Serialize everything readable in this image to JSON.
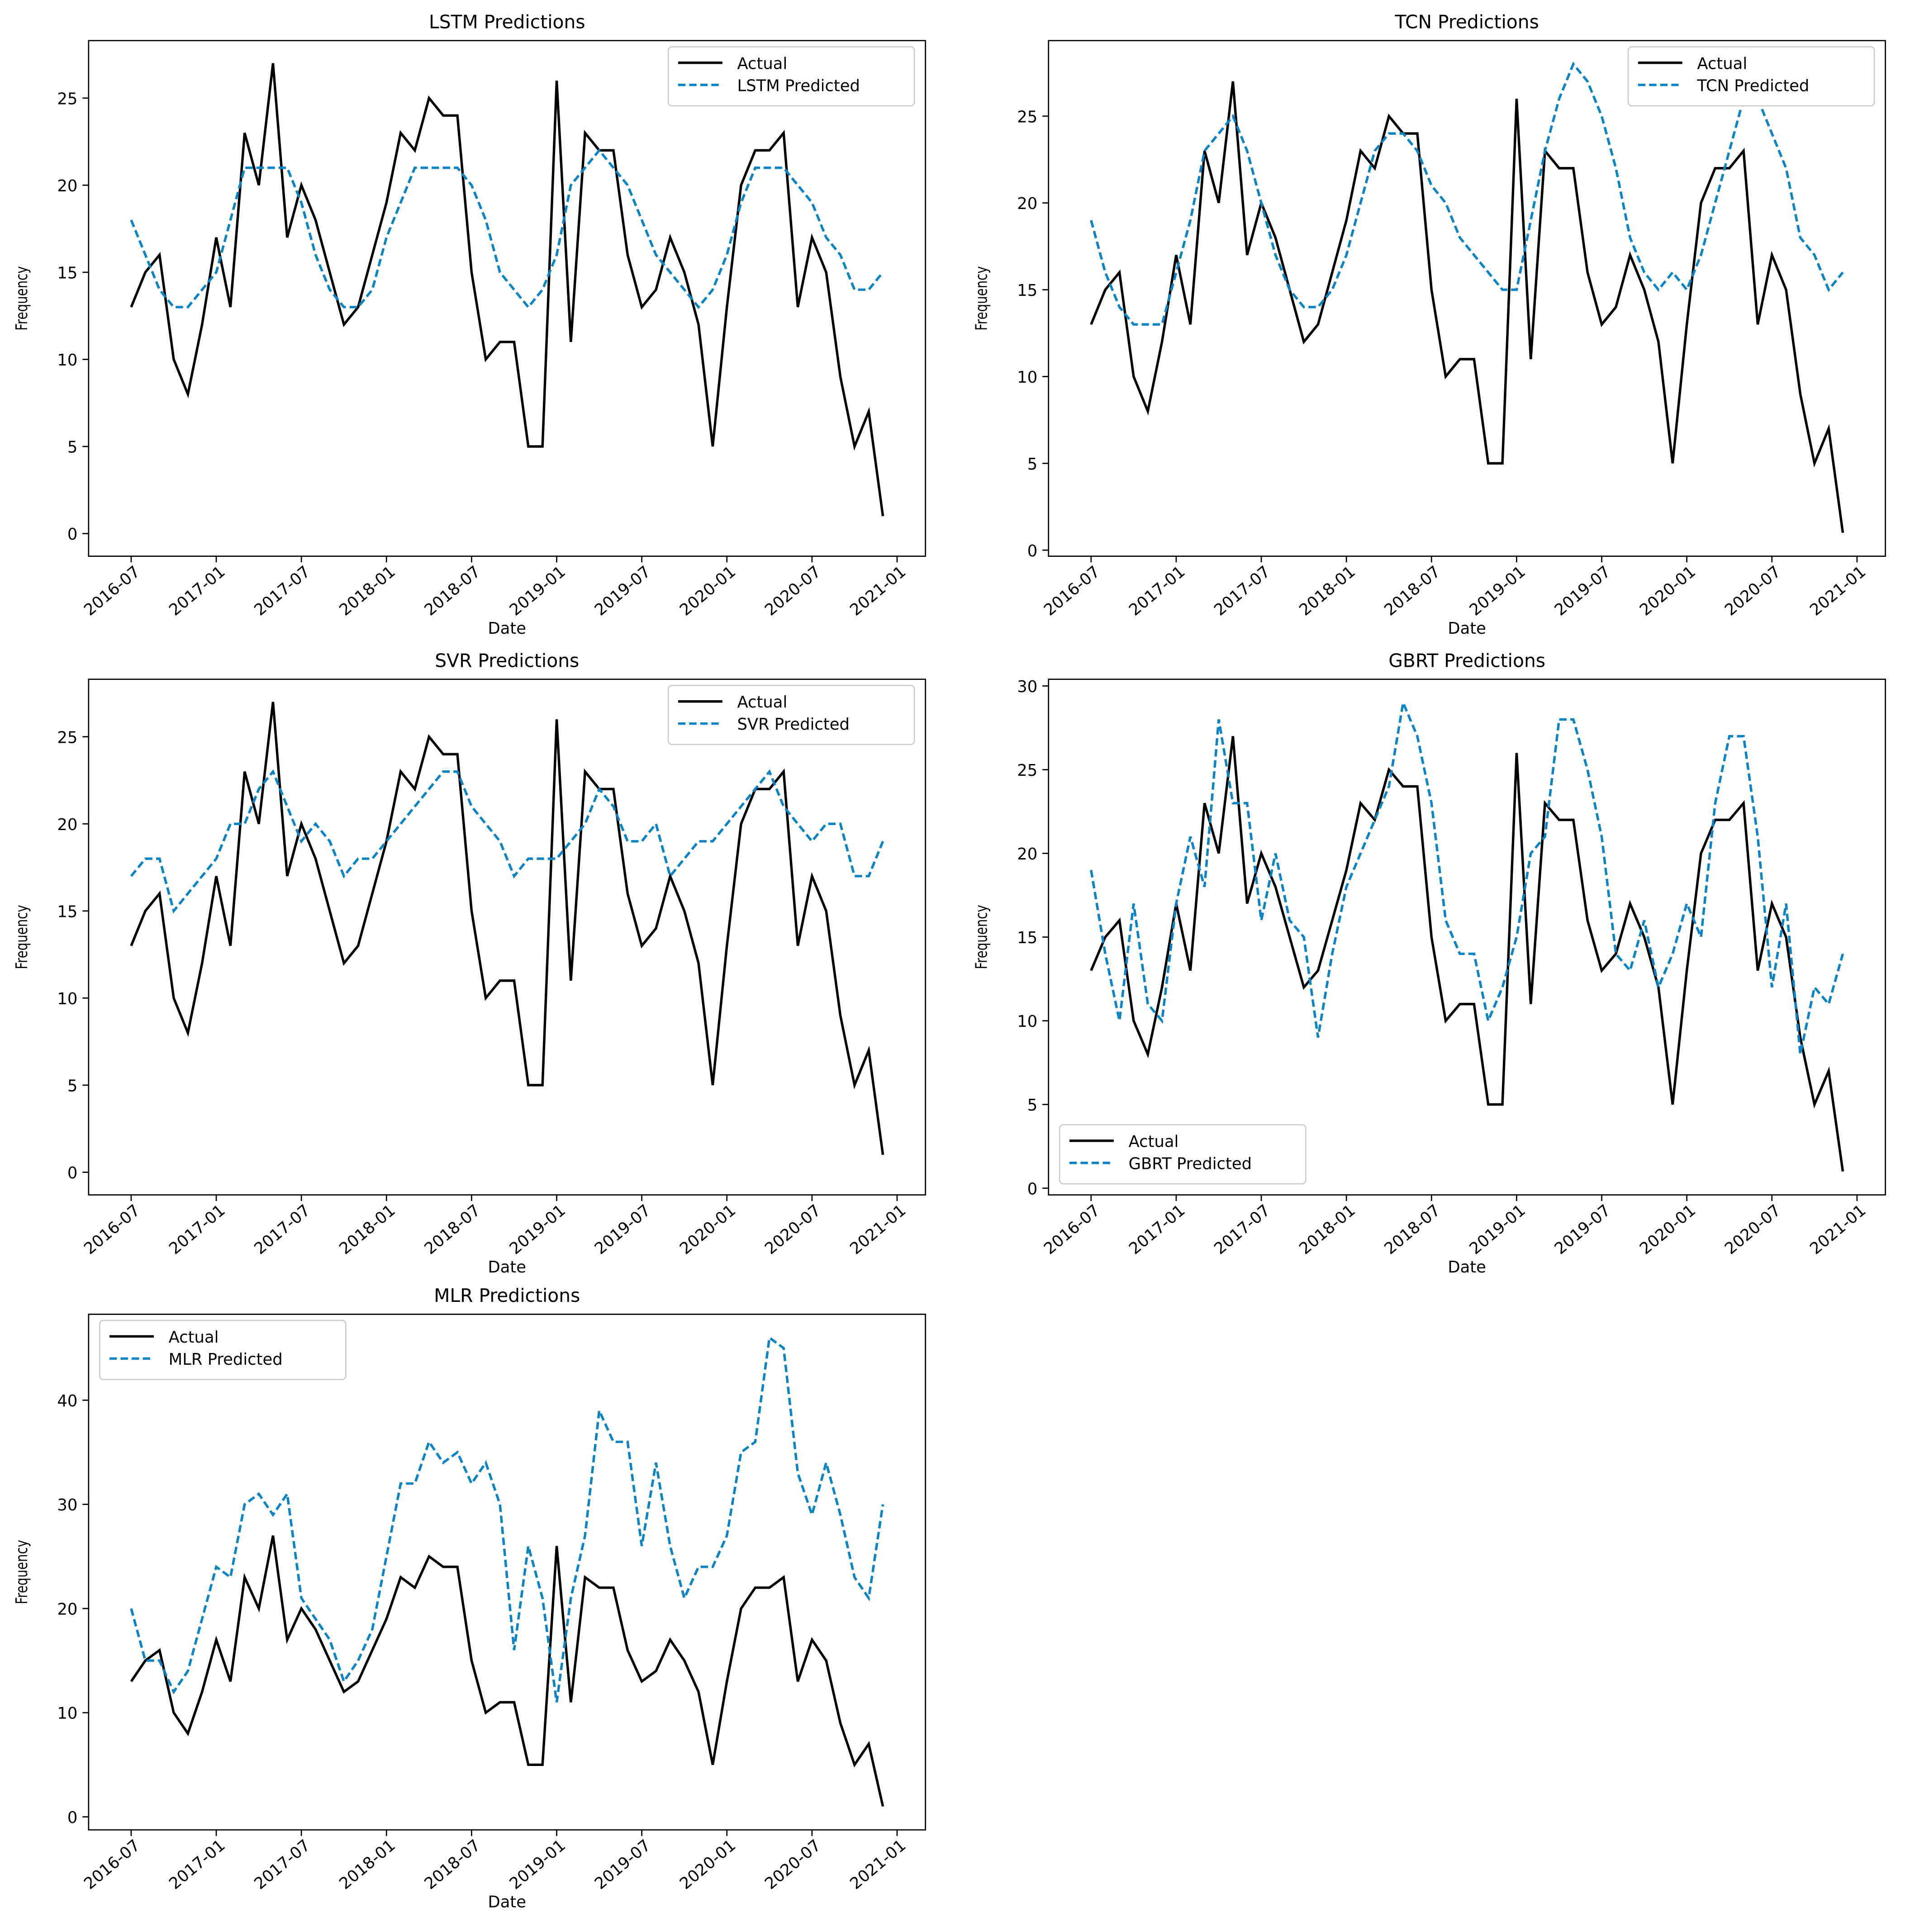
{
  "chart_data": [
    {
      "type": "line",
      "title": "LSTM Predictions",
      "x_label": "Date",
      "y_label": "Frequency",
      "legend": "upper right",
      "x": [
        "2016-07",
        "2016-08",
        "2016-09",
        "2016-10",
        "2016-11",
        "2016-12",
        "2017-01",
        "2017-02",
        "2017-03",
        "2017-04",
        "2017-05",
        "2017-06",
        "2017-07",
        "2017-08",
        "2017-09",
        "2017-10",
        "2017-11",
        "2017-12",
        "2018-01",
        "2018-02",
        "2018-03",
        "2018-04",
        "2018-05",
        "2018-06",
        "2018-07",
        "2018-08",
        "2018-09",
        "2018-10",
        "2018-11",
        "2018-12",
        "2019-01",
        "2019-02",
        "2019-03",
        "2019-04",
        "2019-05",
        "2019-06",
        "2019-07",
        "2019-08",
        "2019-09",
        "2019-10",
        "2019-11",
        "2019-12",
        "2020-01",
        "2020-02",
        "2020-03",
        "2020-04",
        "2020-05",
        "2020-06",
        "2020-07",
        "2020-08",
        "2020-09",
        "2020-10",
        "2020-11",
        "2020-12"
      ],
      "xlim": [
        "2016-04",
        "2021-03"
      ],
      "xticks": [
        "2016-07",
        "2017-01",
        "2017-07",
        "2018-01",
        "2018-07",
        "2019-01",
        "2019-07",
        "2020-01",
        "2020-07",
        "2021-01"
      ],
      "ylim": [
        -1.3,
        28.3
      ],
      "yticks": [
        0,
        5,
        10,
        15,
        20,
        25
      ],
      "series": [
        {
          "name": "Actual",
          "color": "#000000",
          "linestyle": "solid",
          "values": [
            13,
            15,
            16,
            10,
            8,
            12,
            17,
            13,
            23,
            20,
            27,
            17,
            20,
            18,
            15,
            12,
            13,
            16,
            19,
            23,
            22,
            25,
            24,
            24,
            15,
            10,
            11,
            11,
            5,
            5,
            26,
            11,
            23,
            22,
            22,
            16,
            13,
            14,
            17,
            15,
            12,
            5,
            13,
            20,
            22,
            22,
            23,
            13,
            17,
            15,
            9,
            5,
            7,
            1
          ]
        },
        {
          "name": "LSTM Predicted",
          "color": "#0b84c6",
          "linestyle": "dashed",
          "values": [
            18,
            16,
            14,
            13,
            13,
            14,
            15,
            18,
            21,
            21,
            21,
            21,
            19,
            16,
            14,
            13,
            13,
            14,
            17,
            19,
            21,
            21,
            21,
            21,
            20,
            18,
            15,
            14,
            13,
            14,
            16,
            20,
            21,
            22,
            21,
            20,
            18,
            16,
            15,
            14,
            13,
            14,
            16,
            19,
            21,
            21,
            21,
            20,
            19,
            17,
            16,
            14,
            14,
            15
          ]
        }
      ]
    },
    {
      "type": "line",
      "title": "TCN Predictions",
      "x_label": "Date",
      "y_label": "Frequency",
      "legend": "upper right",
      "x": [
        "2016-07",
        "2016-08",
        "2016-09",
        "2016-10",
        "2016-11",
        "2016-12",
        "2017-01",
        "2017-02",
        "2017-03",
        "2017-04",
        "2017-05",
        "2017-06",
        "2017-07",
        "2017-08",
        "2017-09",
        "2017-10",
        "2017-11",
        "2017-12",
        "2018-01",
        "2018-02",
        "2018-03",
        "2018-04",
        "2018-05",
        "2018-06",
        "2018-07",
        "2018-08",
        "2018-09",
        "2018-10",
        "2018-11",
        "2018-12",
        "2019-01",
        "2019-02",
        "2019-03",
        "2019-04",
        "2019-05",
        "2019-06",
        "2019-07",
        "2019-08",
        "2019-09",
        "2019-10",
        "2019-11",
        "2019-12",
        "2020-01",
        "2020-02",
        "2020-03",
        "2020-04",
        "2020-05",
        "2020-06",
        "2020-07",
        "2020-08",
        "2020-09",
        "2020-10",
        "2020-11",
        "2020-12"
      ],
      "xlim": [
        "2016-04",
        "2021-03"
      ],
      "xticks": [
        "2016-07",
        "2017-01",
        "2017-07",
        "2018-01",
        "2018-07",
        "2019-01",
        "2019-07",
        "2020-01",
        "2020-07",
        "2021-01"
      ],
      "ylim": [
        -0.35,
        29.35
      ],
      "yticks": [
        0,
        5,
        10,
        15,
        20,
        25
      ],
      "series": [
        {
          "name": "Actual",
          "color": "#000000",
          "linestyle": "solid",
          "values": [
            13,
            15,
            16,
            10,
            8,
            12,
            17,
            13,
            23,
            20,
            27,
            17,
            20,
            18,
            15,
            12,
            13,
            16,
            19,
            23,
            22,
            25,
            24,
            24,
            15,
            10,
            11,
            11,
            5,
            5,
            26,
            11,
            23,
            22,
            22,
            16,
            13,
            14,
            17,
            15,
            12,
            5,
            13,
            20,
            22,
            22,
            23,
            13,
            17,
            15,
            9,
            5,
            7,
            1
          ]
        },
        {
          "name": "TCN Predicted",
          "color": "#0b84c6",
          "linestyle": "dashed",
          "values": [
            19,
            16,
            14,
            13,
            13,
            13,
            16,
            19,
            23,
            24,
            25,
            23,
            20,
            17,
            15,
            14,
            14,
            15,
            17,
            20,
            23,
            24,
            24,
            23,
            21,
            20,
            18,
            17,
            16,
            15,
            15,
            19,
            23,
            26,
            28,
            27,
            25,
            22,
            18,
            16,
            15,
            16,
            15,
            17,
            20,
            23,
            26,
            26,
            24,
            22,
            18,
            17,
            15,
            16
          ]
        }
      ]
    },
    {
      "type": "line",
      "title": "SVR Predictions",
      "x_label": "Date",
      "y_label": "Frequency",
      "legend": "upper right",
      "x": [
        "2016-07",
        "2016-08",
        "2016-09",
        "2016-10",
        "2016-11",
        "2016-12",
        "2017-01",
        "2017-02",
        "2017-03",
        "2017-04",
        "2017-05",
        "2017-06",
        "2017-07",
        "2017-08",
        "2017-09",
        "2017-10",
        "2017-11",
        "2017-12",
        "2018-01",
        "2018-02",
        "2018-03",
        "2018-04",
        "2018-05",
        "2018-06",
        "2018-07",
        "2018-08",
        "2018-09",
        "2018-10",
        "2018-11",
        "2018-12",
        "2019-01",
        "2019-02",
        "2019-03",
        "2019-04",
        "2019-05",
        "2019-06",
        "2019-07",
        "2019-08",
        "2019-09",
        "2019-10",
        "2019-11",
        "2019-12",
        "2020-01",
        "2020-02",
        "2020-03",
        "2020-04",
        "2020-05",
        "2020-06",
        "2020-07",
        "2020-08",
        "2020-09",
        "2020-10",
        "2020-11",
        "2020-12"
      ],
      "xlim": [
        "2016-04",
        "2021-03"
      ],
      "xticks": [
        "2016-07",
        "2017-01",
        "2017-07",
        "2018-01",
        "2018-07",
        "2019-01",
        "2019-07",
        "2020-01",
        "2020-07",
        "2021-01"
      ],
      "ylim": [
        -1.3,
        28.3
      ],
      "yticks": [
        0,
        5,
        10,
        15,
        20,
        25
      ],
      "series": [
        {
          "name": "Actual",
          "color": "#000000",
          "linestyle": "solid",
          "values": [
            13,
            15,
            16,
            10,
            8,
            12,
            17,
            13,
            23,
            20,
            27,
            17,
            20,
            18,
            15,
            12,
            13,
            16,
            19,
            23,
            22,
            25,
            24,
            24,
            15,
            10,
            11,
            11,
            5,
            5,
            26,
            11,
            23,
            22,
            22,
            16,
            13,
            14,
            17,
            15,
            12,
            5,
            13,
            20,
            22,
            22,
            23,
            13,
            17,
            15,
            9,
            5,
            7,
            1
          ]
        },
        {
          "name": "SVR Predicted",
          "color": "#0b84c6",
          "linestyle": "dashed",
          "values": [
            17,
            18,
            18,
            15,
            16,
            17,
            18,
            20,
            20,
            22,
            23,
            21,
            19,
            20,
            19,
            17,
            18,
            18,
            19,
            20,
            21,
            22,
            23,
            23,
            21,
            20,
            19,
            17,
            18,
            18,
            18,
            19,
            20,
            22,
            21,
            19,
            19,
            20,
            17,
            18,
            19,
            19,
            20,
            21,
            22,
            23,
            21,
            20,
            19,
            20,
            20,
            17,
            17,
            19
          ]
        }
      ]
    },
    {
      "type": "line",
      "title": "GBRT Predictions",
      "x_label": "Date",
      "y_label": "Frequency",
      "legend": "lower left",
      "x": [
        "2016-07",
        "2016-08",
        "2016-09",
        "2016-10",
        "2016-11",
        "2016-12",
        "2017-01",
        "2017-02",
        "2017-03",
        "2017-04",
        "2017-05",
        "2017-06",
        "2017-07",
        "2017-08",
        "2017-09",
        "2017-10",
        "2017-11",
        "2017-12",
        "2018-01",
        "2018-02",
        "2018-03",
        "2018-04",
        "2018-05",
        "2018-06",
        "2018-07",
        "2018-08",
        "2018-09",
        "2018-10",
        "2018-11",
        "2018-12",
        "2019-01",
        "2019-02",
        "2019-03",
        "2019-04",
        "2019-05",
        "2019-06",
        "2019-07",
        "2019-08",
        "2019-09",
        "2019-10",
        "2019-11",
        "2019-12",
        "2020-01",
        "2020-02",
        "2020-03",
        "2020-04",
        "2020-05",
        "2020-06",
        "2020-07",
        "2020-08",
        "2020-09",
        "2020-10",
        "2020-11",
        "2020-12"
      ],
      "xlim": [
        "2016-04",
        "2021-03"
      ],
      "xticks": [
        "2016-07",
        "2017-01",
        "2017-07",
        "2018-01",
        "2018-07",
        "2019-01",
        "2019-07",
        "2020-01",
        "2020-07",
        "2021-01"
      ],
      "ylim": [
        -0.4,
        30.4
      ],
      "yticks": [
        0,
        5,
        10,
        15,
        20,
        25,
        30
      ],
      "series": [
        {
          "name": "Actual",
          "color": "#000000",
          "linestyle": "solid",
          "values": [
            13,
            15,
            16,
            10,
            8,
            12,
            17,
            13,
            23,
            20,
            27,
            17,
            20,
            18,
            15,
            12,
            13,
            16,
            19,
            23,
            22,
            25,
            24,
            24,
            15,
            10,
            11,
            11,
            5,
            5,
            26,
            11,
            23,
            22,
            22,
            16,
            13,
            14,
            17,
            15,
            12,
            5,
            13,
            20,
            22,
            22,
            23,
            13,
            17,
            15,
            9,
            5,
            7,
            1
          ]
        },
        {
          "name": "GBRT Predicted",
          "color": "#0b84c6",
          "linestyle": "dashed",
          "values": [
            19,
            14,
            10,
            17,
            11,
            10,
            17,
            21,
            18,
            28,
            23,
            23,
            16,
            20,
            16,
            15,
            9,
            14,
            18,
            20,
            22,
            24,
            29,
            27,
            23,
            16,
            14,
            14,
            10,
            12,
            15,
            20,
            21,
            28,
            28,
            25,
            21,
            14,
            13,
            16,
            12,
            14,
            17,
            15,
            23,
            27,
            27,
            21,
            12,
            17,
            8,
            12,
            11,
            14
          ]
        }
      ]
    },
    {
      "type": "line",
      "title": "MLR Predictions",
      "x_label": "Date",
      "y_label": "Frequency",
      "legend": "upper left",
      "x": [
        "2016-07",
        "2016-08",
        "2016-09",
        "2016-10",
        "2016-11",
        "2016-12",
        "2017-01",
        "2017-02",
        "2017-03",
        "2017-04",
        "2017-05",
        "2017-06",
        "2017-07",
        "2017-08",
        "2017-09",
        "2017-10",
        "2017-11",
        "2017-12",
        "2018-01",
        "2018-02",
        "2018-03",
        "2018-04",
        "2018-05",
        "2018-06",
        "2018-07",
        "2018-08",
        "2018-09",
        "2018-10",
        "2018-11",
        "2018-12",
        "2019-01",
        "2019-02",
        "2019-03",
        "2019-04",
        "2019-05",
        "2019-06",
        "2019-07",
        "2019-08",
        "2019-09",
        "2019-10",
        "2019-11",
        "2019-12",
        "2020-01",
        "2020-02",
        "2020-03",
        "2020-04",
        "2020-05",
        "2020-06",
        "2020-07",
        "2020-08",
        "2020-09",
        "2020-10",
        "2020-11",
        "2020-12"
      ],
      "xlim": [
        "2016-04",
        "2021-03"
      ],
      "xticks": [
        "2016-07",
        "2017-01",
        "2017-07",
        "2018-01",
        "2018-07",
        "2019-01",
        "2019-07",
        "2020-01",
        "2020-07",
        "2021-01"
      ],
      "ylim": [
        -1.25,
        48.25
      ],
      "yticks": [
        0,
        10,
        20,
        30,
        40
      ],
      "series": [
        {
          "name": "Actual",
          "color": "#000000",
          "linestyle": "solid",
          "values": [
            13,
            15,
            16,
            10,
            8,
            12,
            17,
            13,
            23,
            20,
            27,
            17,
            20,
            18,
            15,
            12,
            13,
            16,
            19,
            23,
            22,
            25,
            24,
            24,
            15,
            10,
            11,
            11,
            5,
            5,
            26,
            11,
            23,
            22,
            22,
            16,
            13,
            14,
            17,
            15,
            12,
            5,
            13,
            20,
            22,
            22,
            23,
            13,
            17,
            15,
            9,
            5,
            7,
            1
          ]
        },
        {
          "name": "MLR Predicted",
          "color": "#0b84c6",
          "linestyle": "dashed",
          "values": [
            20,
            15,
            15,
            12,
            14,
            19,
            24,
            23,
            30,
            31,
            29,
            31,
            21,
            19,
            17,
            13,
            15,
            18,
            25,
            32,
            32,
            36,
            34,
            35,
            32,
            34,
            30,
            16,
            26,
            21,
            11,
            21,
            27,
            39,
            36,
            36,
            26,
            34,
            26,
            21,
            24,
            24,
            27,
            35,
            36,
            46,
            45,
            33,
            29,
            34,
            29,
            23,
            21,
            30
          ]
        }
      ]
    }
  ]
}
